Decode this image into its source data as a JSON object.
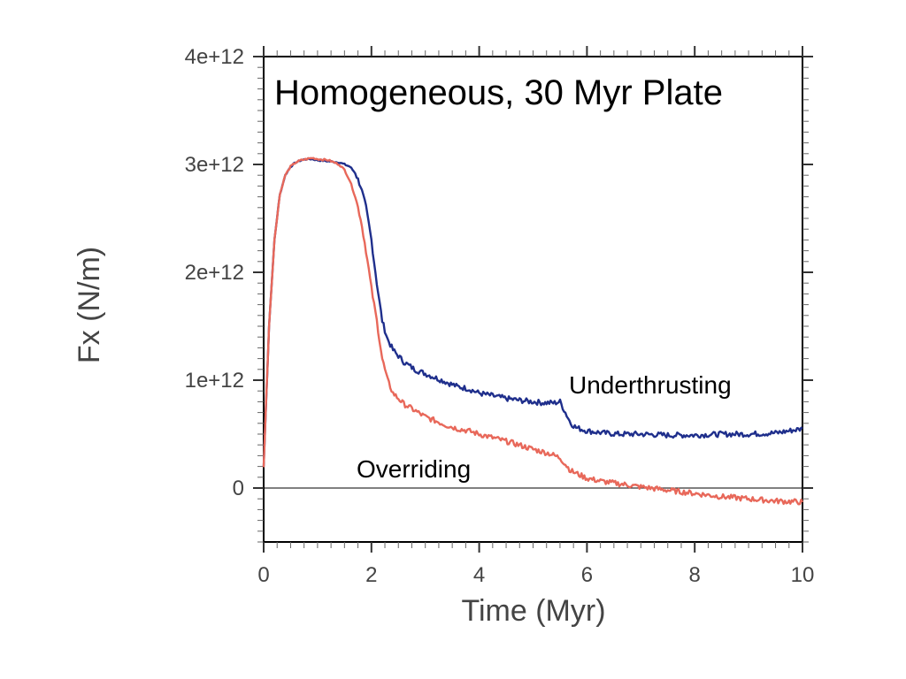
{
  "chart_data": {
    "type": "line",
    "title": "Homogeneous, 30 Myr Plate",
    "xlabel": "Time (Myr)",
    "ylabel": "Fx (N/m)",
    "xlim": [
      0,
      10
    ],
    "ylim": [
      -500000000000.0,
      4000000000000.0
    ],
    "xticks": [
      0,
      2,
      4,
      6,
      8,
      10
    ],
    "xtick_labels": [
      "0",
      "2",
      "4",
      "6",
      "8",
      "10"
    ],
    "yticks": [
      0,
      1000000000000.0,
      2000000000000.0,
      3000000000000.0,
      4000000000000.0
    ],
    "ytick_labels": [
      "0",
      "1e+12",
      "2e+12",
      "3e+12",
      "4e+12"
    ],
    "zero_line": true,
    "annotations": [
      {
        "text": "Underthrusting",
        "series": "Underthrusting"
      },
      {
        "text": "Overriding",
        "series": "Overriding"
      }
    ],
    "series": [
      {
        "name": "Underthrusting",
        "color": "#1f2f8c",
        "x": [
          0,
          0.1,
          0.2,
          0.3,
          0.4,
          0.5,
          0.6,
          0.7,
          0.8,
          0.9,
          1.0,
          1.2,
          1.4,
          1.6,
          1.7,
          1.8,
          1.9,
          2.0,
          2.1,
          2.2,
          2.3,
          2.4,
          2.6,
          2.8,
          3.0,
          3.2,
          3.4,
          3.6,
          3.8,
          4.0,
          4.2,
          4.5,
          4.8,
          5.0,
          5.2,
          5.4,
          5.5,
          5.6,
          5.7,
          5.8,
          6.0,
          6.3,
          6.6,
          7.0,
          7.5,
          8.0,
          8.5,
          9.0,
          9.5,
          10.0
        ],
        "y": [
          200000000000.0,
          1500000000000.0,
          2300000000000.0,
          2720000000000.0,
          2900000000000.0,
          2980000000000.0,
          3020000000000.0,
          3040000000000.0,
          3050000000000.0,
          3050000000000.0,
          3040000000000.0,
          3030000000000.0,
          3020000000000.0,
          2980000000000.0,
          2920000000000.0,
          2800000000000.0,
          2600000000000.0,
          2300000000000.0,
          1900000000000.0,
          1550000000000.0,
          1380000000000.0,
          1280000000000.0,
          1170000000000.0,
          1100000000000.0,
          1060000000000.0,
          1020000000000.0,
          980000000000.0,
          940000000000.0,
          920000000000.0,
          880000000000.0,
          860000000000.0,
          830000000000.0,
          810000000000.0,
          800000000000.0,
          790000000000.0,
          790000000000.0,
          800000000000.0,
          700000000000.0,
          600000000000.0,
          560000000000.0,
          530000000000.0,
          510000000000.0,
          500000000000.0,
          500000000000.0,
          490000000000.0,
          490000000000.0,
          500000000000.0,
          500000000000.0,
          510000000000.0,
          550000000000.0
        ]
      },
      {
        "name": "Overriding",
        "color": "#e8685a",
        "x": [
          0,
          0.1,
          0.2,
          0.3,
          0.4,
          0.5,
          0.6,
          0.7,
          0.8,
          0.9,
          1.0,
          1.2,
          1.4,
          1.5,
          1.6,
          1.7,
          1.8,
          1.9,
          2.0,
          2.1,
          2.2,
          2.3,
          2.4,
          2.6,
          2.8,
          3.0,
          3.2,
          3.4,
          3.6,
          3.8,
          4.0,
          4.3,
          4.6,
          5.0,
          5.3,
          5.5,
          5.7,
          6.0,
          6.3,
          6.6,
          7.0,
          7.5,
          8.0,
          8.5,
          9.0,
          9.5,
          10.0
        ],
        "y": [
          200000000000.0,
          1500000000000.0,
          2300000000000.0,
          2720000000000.0,
          2900000000000.0,
          2980000000000.0,
          3020000000000.0,
          3040000000000.0,
          3050000000000.0,
          3060000000000.0,
          3050000000000.0,
          3040000000000.0,
          3000000000000.0,
          2950000000000.0,
          2850000000000.0,
          2700000000000.0,
          2500000000000.0,
          2200000000000.0,
          1850000000000.0,
          1550000000000.0,
          1200000000000.0,
          1000000000000.0,
          880000000000.0,
          780000000000.0,
          720000000000.0,
          660000000000.0,
          620000000000.0,
          580000000000.0,
          550000000000.0,
          530000000000.0,
          500000000000.0,
          460000000000.0,
          420000000000.0,
          360000000000.0,
          320000000000.0,
          280000000000.0,
          160000000000.0,
          90000000000.0,
          60000000000.0,
          40000000000.0,
          10000000000.0,
          -20000000000.0,
          -50000000000.0,
          -80000000000.0,
          -100000000000.0,
          -120000000000.0,
          -130000000000.0
        ]
      }
    ]
  }
}
